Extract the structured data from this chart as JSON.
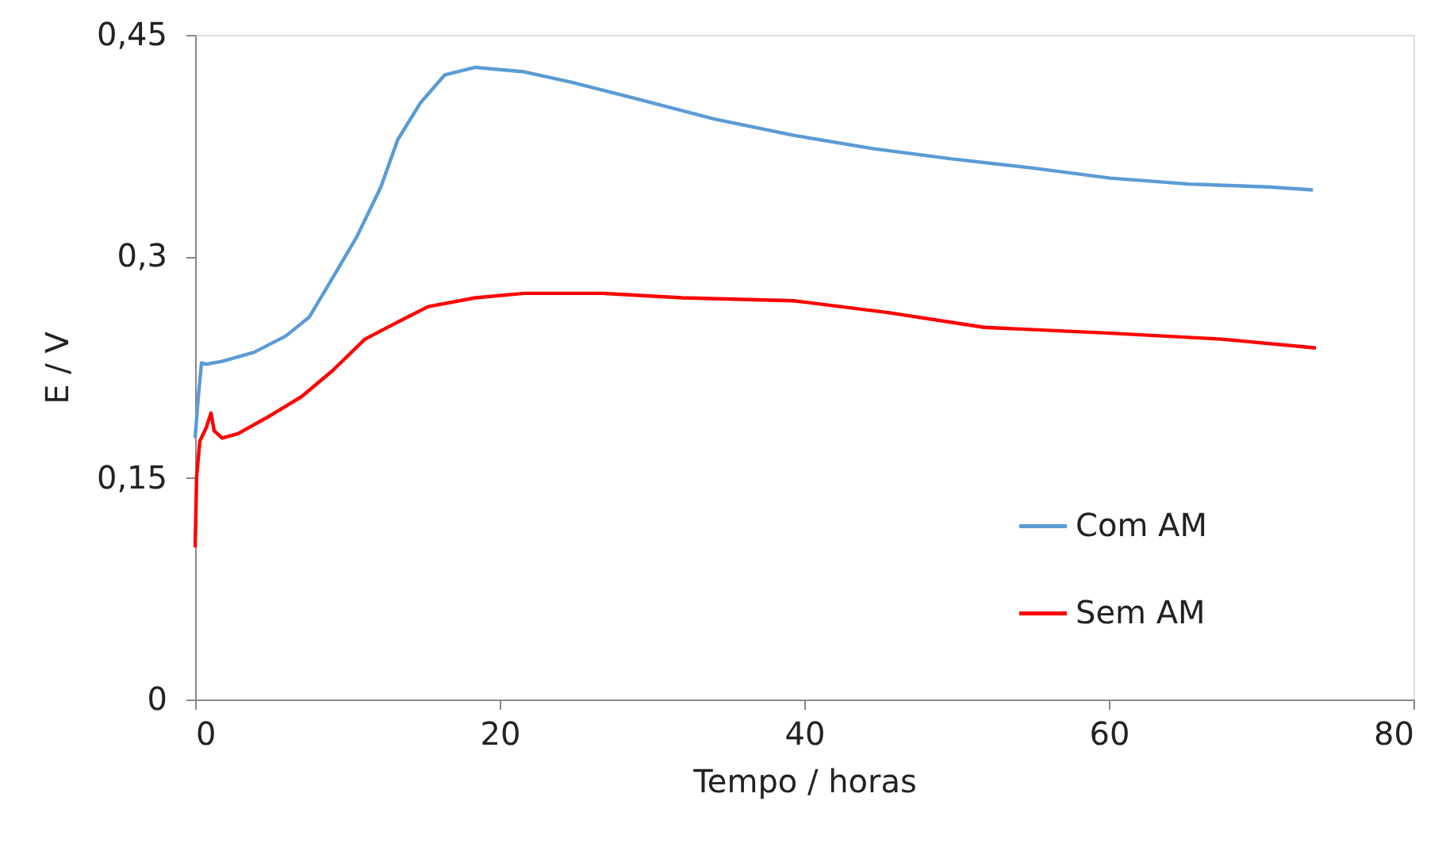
{
  "chart_data": {
    "type": "line",
    "xlabel": "Tempo / horas",
    "ylabel": "E / V",
    "xlim": [
      0,
      80
    ],
    "xticks": [
      0,
      20,
      40,
      60,
      80
    ],
    "ylim": [
      0,
      0.45
    ],
    "yticks": [
      {
        "value": 0,
        "label": "0"
      },
      {
        "value": 0.15,
        "label": "0,15"
      },
      {
        "value": 0.3,
        "label": "0,3"
      },
      {
        "value": 0.45,
        "label": "0,45"
      }
    ],
    "grid": false,
    "legend": "right",
    "marker": "none",
    "line_style": "solid",
    "series": [
      {
        "name": "Com AM",
        "color": "#5b9bd5",
        "x": [
          0,
          0.21,
          0.42,
          0.73,
          1.77,
          3.85,
          5.94,
          7.5,
          9.06,
          10.6,
          12.2,
          13.3,
          14.8,
          16.4,
          18.4,
          21.6,
          24.7,
          28.9,
          34.1,
          39.3,
          44.5,
          49.7,
          54.9,
          60.1,
          65.3,
          70.5,
          73.4
        ],
        "values": [
          0.177,
          0.205,
          0.228,
          0.227,
          0.229,
          0.235,
          0.246,
          0.259,
          0.286,
          0.313,
          0.347,
          0.379,
          0.404,
          0.423,
          0.428,
          0.425,
          0.418,
          0.407,
          0.393,
          0.382,
          0.373,
          0.366,
          0.36,
          0.353,
          0.349,
          0.347,
          0.345
        ]
      },
      {
        "name": "Sem AM",
        "color": "#ff0000",
        "x": [
          0,
          0.1,
          0.31,
          0.73,
          1.04,
          1.25,
          1.77,
          2.81,
          4.9,
          6.98,
          9.06,
          11.15,
          13.2,
          15.3,
          18.4,
          21.6,
          26.8,
          32,
          39.3,
          45.5,
          51.8,
          60.1,
          67.4,
          73.6
        ],
        "values": [
          0.103,
          0.151,
          0.175,
          0.184,
          0.194,
          0.182,
          0.177,
          0.18,
          0.192,
          0.205,
          0.223,
          0.244,
          0.255,
          0.266,
          0.272,
          0.275,
          0.275,
          0.272,
          0.27,
          0.262,
          0.252,
          0.248,
          0.244,
          0.238
        ]
      }
    ]
  }
}
